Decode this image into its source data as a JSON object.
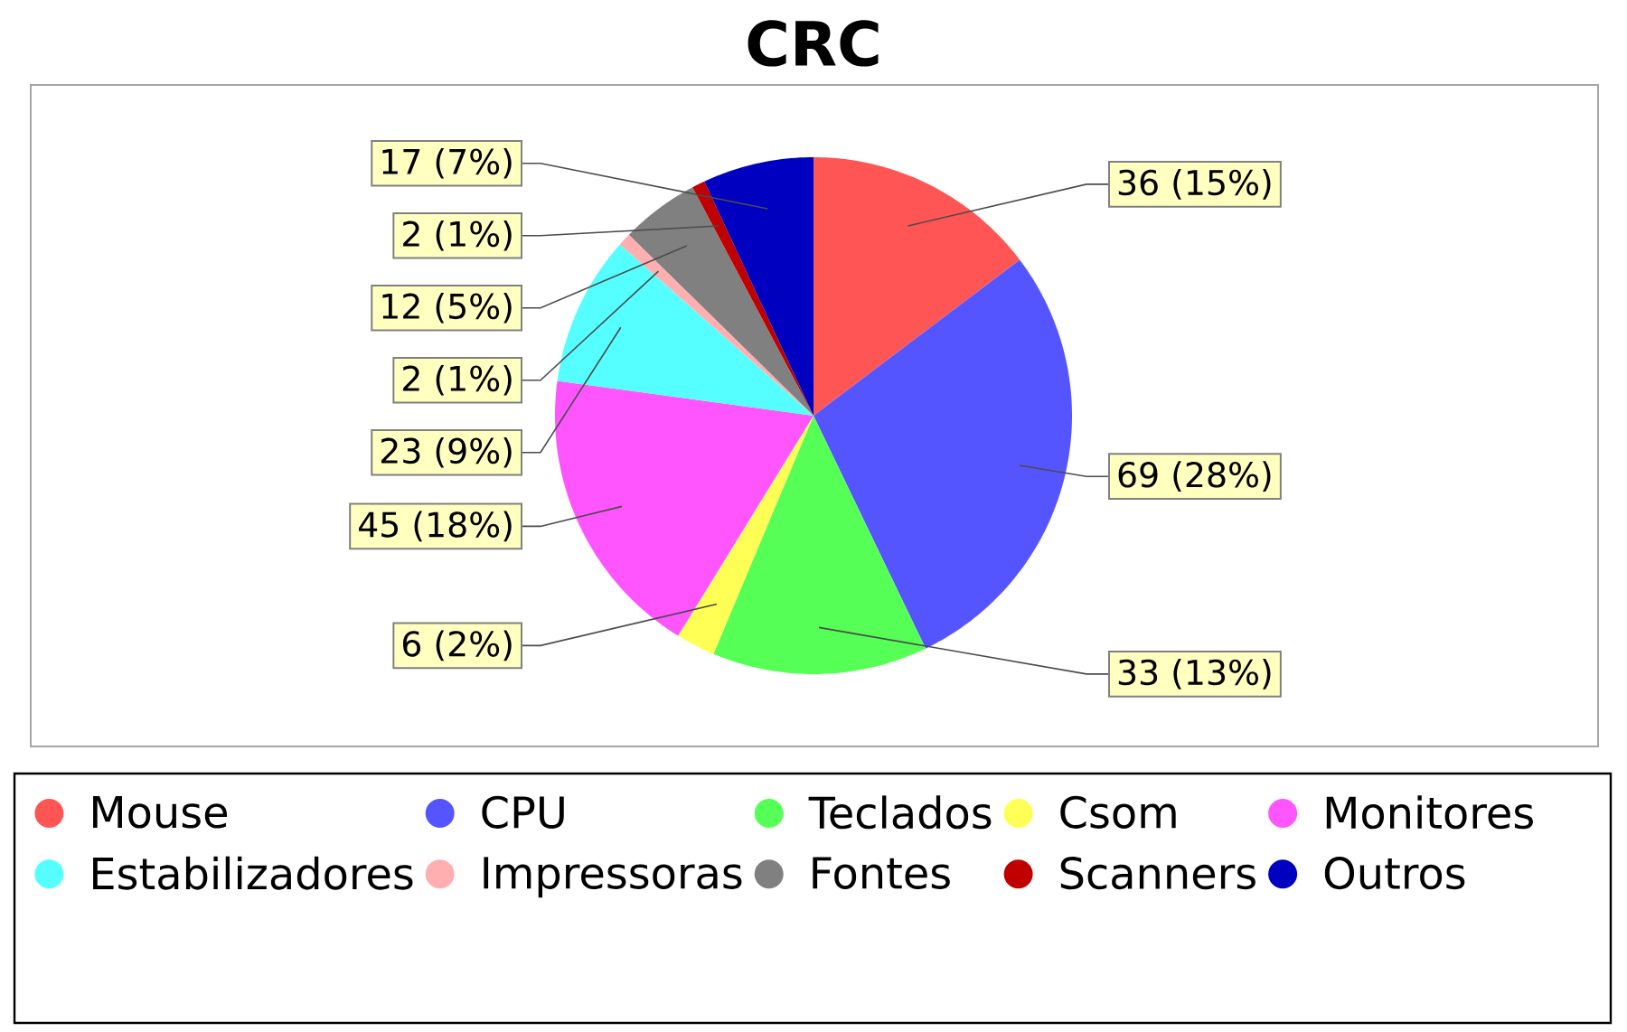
{
  "chart_data": {
    "type": "pie",
    "title": "CRC",
    "categories": [
      "Mouse",
      "CPU",
      "Teclados",
      "Csom",
      "Monitores",
      "Estabilizadores",
      "Impressoras",
      "Fontes",
      "Scanners",
      "Outros"
    ],
    "values": [
      36,
      69,
      33,
      6,
      45,
      23,
      2,
      12,
      2,
      17
    ],
    "value_labels": [
      "36 (15%)",
      "69 (28%)",
      "33 (13%)",
      "6 (2%)",
      "45 (18%)",
      "23 (9%)",
      "2 (1%)",
      "12 (5%)",
      "2 (1%)",
      "17 (7%)"
    ],
    "colors": [
      "#ff5555",
      "#5555ff",
      "#55ff55",
      "#ffff55",
      "#ff55ff",
      "#55ffff",
      "#ffafaf",
      "#808080",
      "#c00000",
      "#0000c0"
    ],
    "legend": "bottom"
  }
}
